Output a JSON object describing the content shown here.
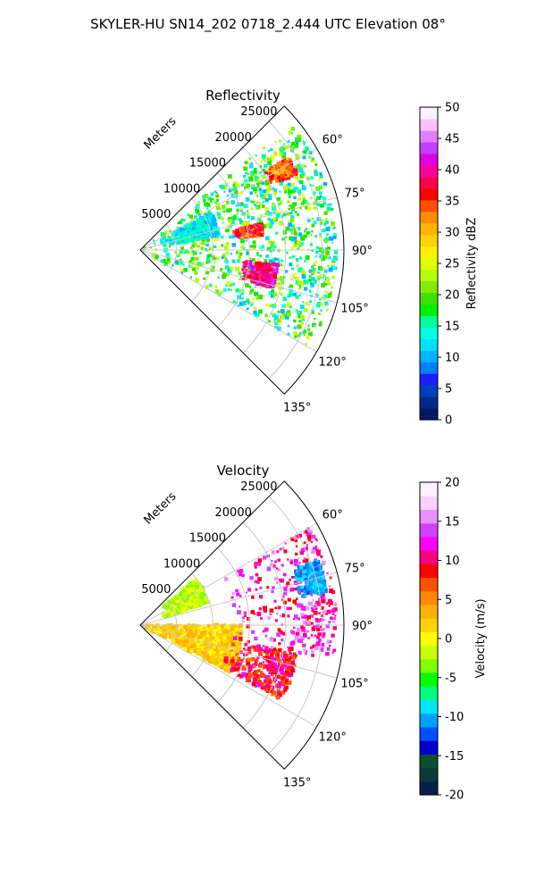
{
  "figure": {
    "title": "SKYLER-HU  SN14_202  0718_2.444 UTC Elevation 08°"
  },
  "chart_data": [
    {
      "type": "heatmap",
      "projection": "polar-sector",
      "title": "Reflectivity",
      "range_label": "Meters",
      "range_ticks": [
        5000,
        10000,
        15000,
        20000,
        25000
      ],
      "range_max": 28000,
      "azimuth_range_deg": [
        45,
        135
      ],
      "angle_ticks": [
        60,
        75,
        90,
        105,
        120,
        135
      ],
      "angle_tick_labels": [
        "60°",
        "75°",
        "90°",
        "105°",
        "120°",
        "135°"
      ],
      "grid": true,
      "colorbar": {
        "label": "Reflectivity dBZ",
        "vmin": 0,
        "vmax": 50,
        "ticks": [
          0,
          5,
          10,
          15,
          20,
          25,
          30,
          35,
          40,
          45,
          50
        ],
        "position": "right"
      },
      "echo_regions": [
        {
          "az": [
            50,
            120
          ],
          "range": [
            0,
            27000
          ],
          "value_range": [
            10,
            25
          ],
          "dominant": "scattered green/cyan echoes"
        },
        {
          "az": [
            96,
            106
          ],
          "range": [
            14000,
            19000
          ],
          "value_range": [
            35,
            45
          ],
          "dominant": "magenta core"
        },
        {
          "az": [
            78,
            83
          ],
          "range": [
            13000,
            17000
          ],
          "value_range": [
            30,
            42
          ],
          "dominant": "red/magenta band"
        },
        {
          "az": [
            58,
            64
          ],
          "range": [
            20000,
            24000
          ],
          "value_range": [
            28,
            38
          ],
          "dominant": "red cell"
        },
        {
          "az": [
            62,
            80
          ],
          "range": [
            3000,
            11000
          ],
          "value_range": [
            10,
            16
          ],
          "dominant": "cyan region"
        }
      ]
    },
    {
      "type": "heatmap",
      "projection": "polar-sector",
      "title": "Velocity",
      "range_label": "Meters",
      "range_ticks": [
        5000,
        10000,
        15000,
        20000,
        25000
      ],
      "range_max": 28000,
      "azimuth_range_deg": [
        45,
        135
      ],
      "angle_ticks": [
        60,
        75,
        90,
        105,
        120,
        135
      ],
      "angle_tick_labels": [
        "60°",
        "75°",
        "90°",
        "105°",
        "120°",
        "135°"
      ],
      "grid": true,
      "colorbar": {
        "label": "Velocity (m/s)",
        "vmin": -20,
        "vmax": 20,
        "ticks": [
          -20,
          -15,
          -10,
          -5,
          0,
          5,
          10,
          15,
          20
        ],
        "position": "right"
      },
      "echo_regions": [
        {
          "az": [
            90,
            118
          ],
          "range": [
            0,
            14000
          ],
          "value_range": [
            0,
            4
          ],
          "dominant": "yellow/orange inbound-near"
        },
        {
          "az": [
            60,
            100
          ],
          "range": [
            12000,
            27000
          ],
          "value_range": [
            8,
            16
          ],
          "dominant": "red/magenta outbound"
        },
        {
          "az": [
            70,
            80
          ],
          "range": [
            22000,
            26000
          ],
          "value_range": [
            -12,
            -8
          ],
          "dominant": "cyan patch"
        },
        {
          "az": [
            50,
            72
          ],
          "range": [
            3000,
            10000
          ],
          "value_range": [
            -4,
            0
          ],
          "dominant": "light green near sector"
        },
        {
          "az": [
            100,
            118
          ],
          "range": [
            12000,
            22000
          ],
          "value_range": [
            6,
            12
          ],
          "dominant": "red/orange band"
        }
      ]
    }
  ],
  "colormaps": {
    "reflectivity": [
      "#001a5e",
      "#002a8a",
      "#0040c0",
      "#1e1efa",
      "#0080ff",
      "#00b4ff",
      "#00e0ff",
      "#00ffe0",
      "#00ff9a",
      "#00f000",
      "#40e000",
      "#80ee00",
      "#b4ff00",
      "#e0ff00",
      "#fff000",
      "#ffd200",
      "#ffb400",
      "#ff8c00",
      "#ff5000",
      "#ff0000",
      "#ff0050",
      "#ff00a0",
      "#e000e0",
      "#c040ff",
      "#e080ff",
      "#ffc0ff",
      "#fff0ff"
    ],
    "velocity": [
      "#0a1e4a",
      "#0a3a3a",
      "#0a5030",
      "#0000c8",
      "#0050ff",
      "#00a0ff",
      "#00e6ff",
      "#00ff80",
      "#00ff00",
      "#80ff00",
      "#c8ff00",
      "#ffff00",
      "#ffd200",
      "#ffb000",
      "#ff8800",
      "#ff5000",
      "#ff0000",
      "#ff0080",
      "#ff00ff",
      "#d040ff",
      "#e890ff",
      "#ffd0ff",
      "#fff0ff"
    ]
  },
  "colors": {
    "grid": "#c8c8c8",
    "axes": "#000000"
  }
}
